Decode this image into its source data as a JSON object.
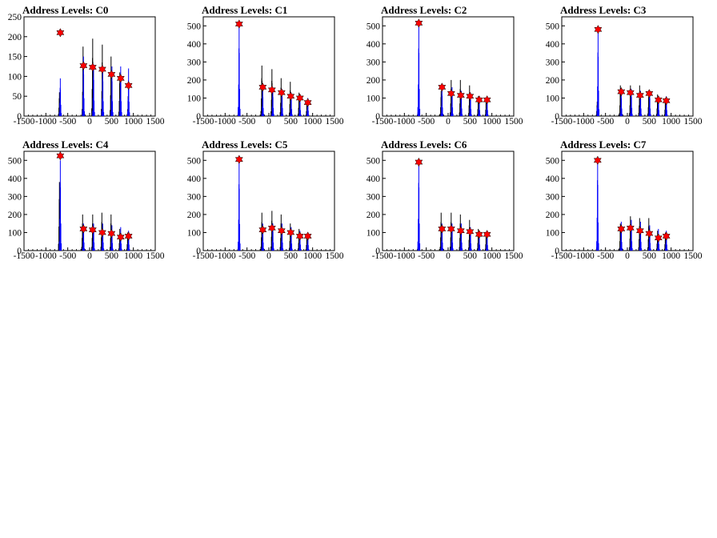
{
  "chart_data": [
    {
      "type": "histogram",
      "title": "Address Levels: C0",
      "xlim": [
        -1500,
        1500
      ],
      "ylim": [
        0,
        250
      ],
      "xticks": [
        -1500,
        -1000,
        -500,
        0,
        500,
        1000,
        1500
      ],
      "yticks": [
        0,
        50,
        100,
        150,
        200,
        250
      ],
      "blue_x": [
        -670,
        -140,
        90,
        300,
        510,
        710,
        890
      ],
      "blue_peak": [
        95,
        150,
        130,
        125,
        125,
        125,
        120
      ],
      "black_x": [
        -690,
        -150,
        70,
        290,
        490,
        690,
        880
      ],
      "black_peak": [
        60,
        175,
        195,
        180,
        150,
        110,
        50
      ],
      "markers": {
        "x": [
          -670,
          -140,
          70,
          290,
          500,
          710,
          890
        ],
        "y": [
          210,
          127,
          123,
          118,
          105,
          95,
          77
        ]
      }
    },
    {
      "type": "histogram",
      "title": "Address Levels: C1",
      "xlim": [
        -1500,
        1500
      ],
      "ylim": [
        0,
        550
      ],
      "xticks": [
        -1500,
        -1000,
        -500,
        0,
        500,
        1000,
        1500
      ],
      "yticks": [
        0,
        100,
        200,
        300,
        400,
        500
      ],
      "blue_x": [
        -680,
        -140,
        90,
        300,
        510,
        710,
        890
      ],
      "blue_peak": [
        500,
        150,
        150,
        150,
        130,
        110,
        100
      ],
      "black_x": [
        -700,
        -160,
        70,
        280,
        490,
        690,
        870
      ],
      "black_peak": [
        20,
        280,
        260,
        210,
        190,
        130,
        80
      ],
      "markers": {
        "x": [
          -680,
          -140,
          70,
          290,
          500,
          710,
          890
        ],
        "y": [
          510,
          160,
          145,
          130,
          110,
          100,
          75
        ]
      }
    },
    {
      "type": "histogram",
      "title": "Address Levels: C2",
      "xlim": [
        -1500,
        1500
      ],
      "ylim": [
        0,
        550
      ],
      "xticks": [
        -1500,
        -1000,
        -500,
        0,
        500,
        1000,
        1500
      ],
      "yticks": [
        0,
        100,
        200,
        300,
        400,
        500
      ],
      "blue_x": [
        -670,
        -140,
        90,
        300,
        510,
        710,
        890
      ],
      "blue_peak": [
        500,
        160,
        160,
        140,
        130,
        110,
        110
      ],
      "black_x": [
        -690,
        -160,
        70,
        280,
        490,
        690,
        870
      ],
      "black_peak": [
        20,
        140,
        200,
        200,
        170,
        110,
        100
      ],
      "markers": {
        "x": [
          -670,
          -140,
          70,
          290,
          500,
          710,
          890
        ],
        "y": [
          515,
          160,
          125,
          115,
          110,
          90,
          90
        ]
      }
    },
    {
      "type": "histogram",
      "title": "Address Levels: C3",
      "xlim": [
        -1500,
        1500
      ],
      "ylim": [
        0,
        550
      ],
      "xticks": [
        -1500,
        -1000,
        -500,
        0,
        500,
        1000,
        1500
      ],
      "yticks": [
        0,
        100,
        200,
        300,
        400,
        500
      ],
      "blue_x": [
        -670,
        -140,
        90,
        300,
        510,
        710,
        890
      ],
      "blue_peak": [
        470,
        140,
        150,
        140,
        140,
        110,
        110
      ],
      "black_x": [
        -690,
        -160,
        70,
        280,
        490,
        690,
        870
      ],
      "black_peak": [
        80,
        170,
        170,
        170,
        140,
        120,
        100
      ],
      "markers": {
        "x": [
          -670,
          -140,
          70,
          290,
          500,
          710,
          890
        ],
        "y": [
          480,
          135,
          130,
          115,
          125,
          90,
          85
        ]
      }
    },
    {
      "type": "histogram",
      "title": "Address Levels: C4",
      "xlim": [
        -1500,
        1500
      ],
      "ylim": [
        0,
        550
      ],
      "xticks": [
        -1500,
        -1000,
        -500,
        0,
        500,
        1000,
        1500
      ],
      "yticks": [
        0,
        100,
        200,
        300,
        400,
        500
      ],
      "blue_x": [
        -670,
        -140,
        90,
        300,
        510,
        710,
        890
      ],
      "blue_peak": [
        500,
        150,
        150,
        150,
        140,
        130,
        110
      ],
      "black_x": [
        -690,
        -160,
        70,
        280,
        490,
        690,
        870
      ],
      "black_peak": [
        380,
        200,
        200,
        210,
        200,
        120,
        100
      ],
      "markers": {
        "x": [
          -670,
          -140,
          70,
          290,
          500,
          710,
          890
        ],
        "y": [
          525,
          120,
          115,
          100,
          95,
          75,
          80
        ]
      }
    },
    {
      "type": "histogram",
      "title": "Address Levels: C5",
      "xlim": [
        -1500,
        1500
      ],
      "ylim": [
        0,
        550
      ],
      "xticks": [
        -1500,
        -1000,
        -500,
        0,
        500,
        1000,
        1500
      ],
      "yticks": [
        0,
        100,
        200,
        300,
        400,
        500
      ],
      "blue_x": [
        -680,
        -140,
        90,
        300,
        510,
        710,
        890
      ],
      "blue_peak": [
        490,
        150,
        150,
        150,
        130,
        110,
        100
      ],
      "black_x": [
        -700,
        -160,
        70,
        280,
        490,
        690,
        870
      ],
      "black_peak": [
        20,
        210,
        220,
        200,
        150,
        120,
        90
      ],
      "markers": {
        "x": [
          -680,
          -140,
          70,
          290,
          500,
          710,
          890
        ],
        "y": [
          505,
          115,
          125,
          110,
          100,
          80,
          80
        ]
      }
    },
    {
      "type": "histogram",
      "title": "Address Levels: C6",
      "xlim": [
        -1500,
        1500
      ],
      "ylim": [
        0,
        550
      ],
      "xticks": [
        -1500,
        -1000,
        -500,
        0,
        500,
        1000,
        1500
      ],
      "yticks": [
        0,
        100,
        200,
        300,
        400,
        500
      ],
      "blue_x": [
        -670,
        -140,
        90,
        300,
        510,
        710,
        890
      ],
      "blue_peak": [
        500,
        150,
        150,
        150,
        130,
        110,
        100
      ],
      "black_x": [
        -690,
        -160,
        70,
        280,
        490,
        690,
        870
      ],
      "black_peak": [
        20,
        210,
        210,
        200,
        170,
        120,
        100
      ],
      "markers": {
        "x": [
          -670,
          -140,
          70,
          290,
          500,
          710,
          890
        ],
        "y": [
          490,
          120,
          120,
          110,
          105,
          90,
          90
        ]
      }
    },
    {
      "type": "histogram",
      "title": "Address Levels: C7",
      "xlim": [
        -1500,
        1500
      ],
      "ylim": [
        0,
        550
      ],
      "xticks": [
        -1500,
        -1000,
        -500,
        0,
        500,
        1000,
        1500
      ],
      "yticks": [
        0,
        100,
        200,
        300,
        400,
        500
      ],
      "blue_x": [
        -680,
        -140,
        90,
        300,
        510,
        710,
        890
      ],
      "blue_peak": [
        520,
        160,
        170,
        160,
        140,
        120,
        110
      ],
      "black_x": [
        -700,
        -160,
        70,
        280,
        490,
        690,
        870
      ],
      "black_peak": [
        20,
        150,
        190,
        180,
        180,
        110,
        100
      ],
      "markers": {
        "x": [
          -680,
          -140,
          70,
          290,
          500,
          710,
          890
        ],
        "y": [
          500,
          120,
          125,
          110,
          95,
          70,
          80
        ]
      }
    }
  ]
}
